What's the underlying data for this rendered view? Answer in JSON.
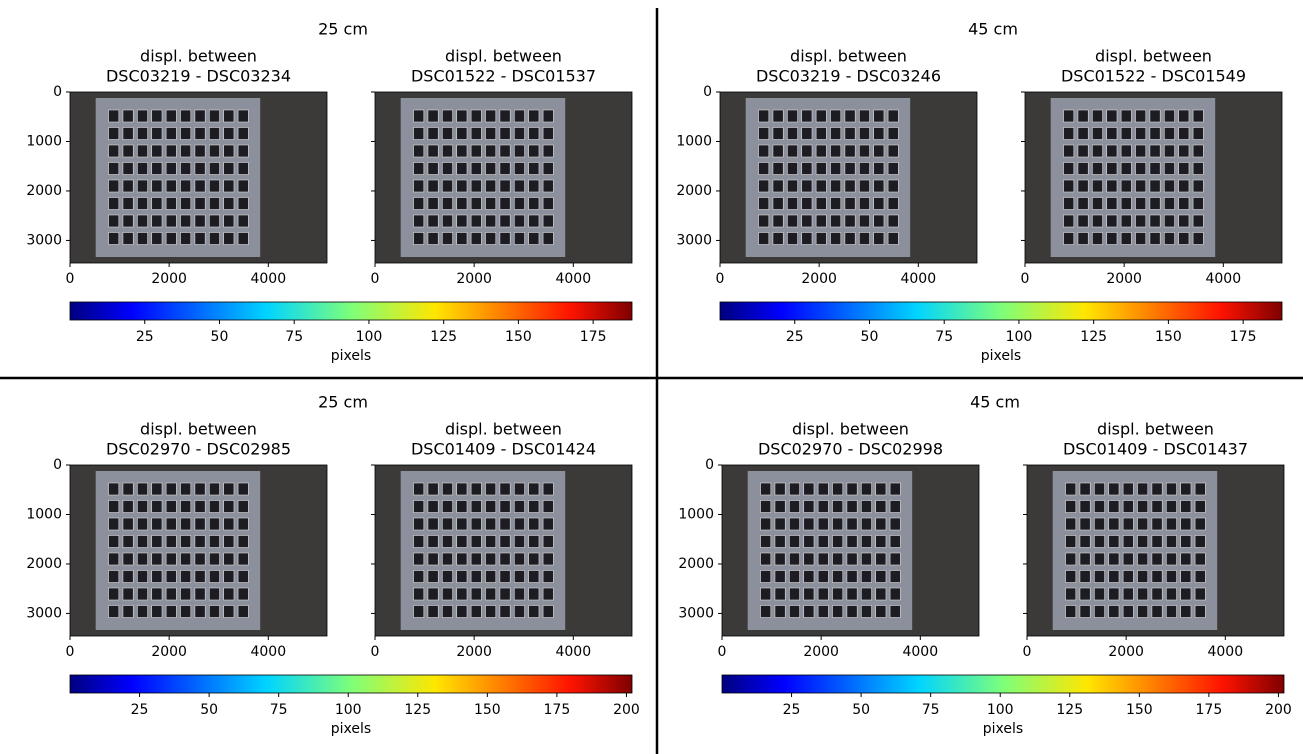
{
  "panels": [
    {
      "title": "25 cm",
      "subplots": [
        {
          "title": [
            "displ. between",
            "DSC03219 -  DSC03234"
          ]
        },
        {
          "title": [
            "displ. between",
            "DSC01522 -  DSC01537"
          ]
        }
      ],
      "colorbar": {
        "label": "pixels",
        "lim": [
          0,
          188
        ],
        "ticks": [
          25,
          50,
          75,
          100,
          125,
          150,
          175
        ]
      }
    },
    {
      "title": "45 cm",
      "subplots": [
        {
          "title": [
            "displ. between",
            "DSC03219 -  DSC03246"
          ]
        },
        {
          "title": [
            "displ. between",
            "DSC01522 -  DSC01549"
          ]
        }
      ],
      "colorbar": {
        "label": "pixels",
        "lim": [
          0,
          188
        ],
        "ticks": [
          25,
          50,
          75,
          100,
          125,
          150,
          175
        ]
      }
    },
    {
      "title": "25 cm",
      "subplots": [
        {
          "title": [
            "displ. between",
            "DSC02970 -  DSC02985"
          ]
        },
        {
          "title": [
            "displ. between",
            "DSC01409 -  DSC01424"
          ]
        }
      ],
      "colorbar": {
        "label": "pixels",
        "lim": [
          0,
          202
        ],
        "ticks": [
          25,
          50,
          75,
          100,
          125,
          150,
          175,
          200
        ]
      }
    },
    {
      "title": "45 cm",
      "subplots": [
        {
          "title": [
            "displ. between",
            "DSC02970 -  DSC02998"
          ]
        },
        {
          "title": [
            "displ. between",
            "DSC01409 -  DSC01437"
          ]
        }
      ],
      "colorbar": {
        "label": "pixels",
        "lim": [
          0,
          202
        ],
        "ticks": [
          25,
          50,
          75,
          100,
          125,
          150,
          175,
          200
        ]
      }
    }
  ],
  "image_axes": {
    "xlim": [
      0,
      5184
    ],
    "ylim": [
      0,
      3456
    ],
    "xticks": [
      0,
      2000,
      4000
    ],
    "yticks": [
      0,
      1000,
      2000,
      3000
    ]
  }
}
